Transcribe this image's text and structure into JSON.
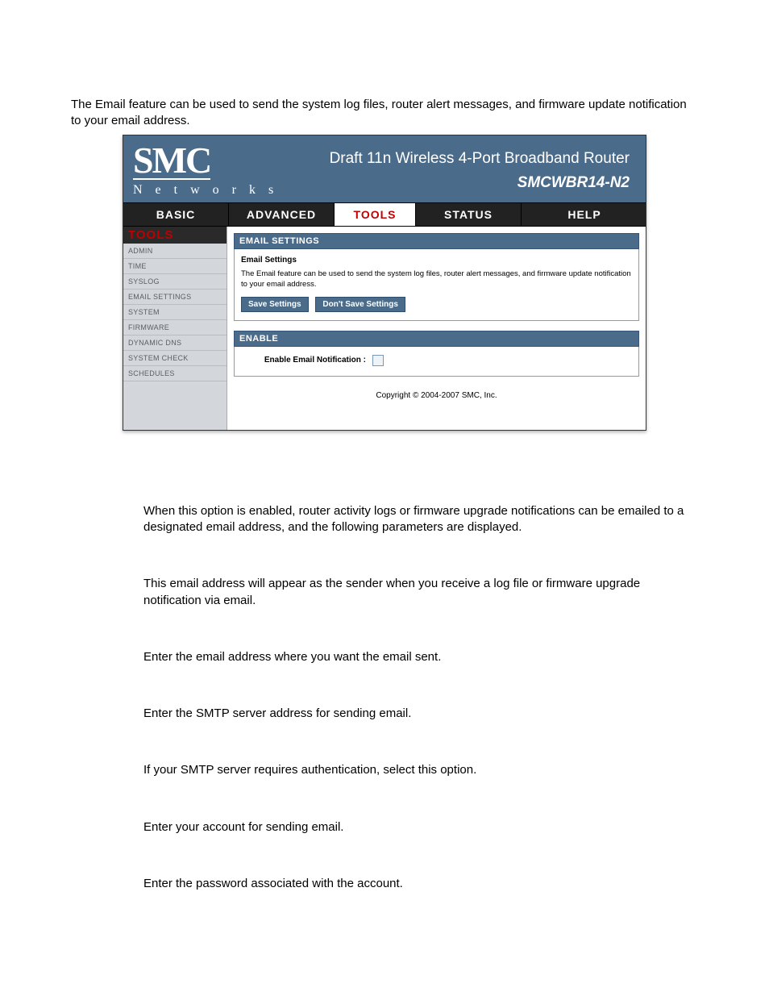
{
  "intro": "The Email feature can be used to send the system log files, router alert messages, and firmware update notification to your email address.",
  "logo": {
    "top": "SMC",
    "bottom": "N e t w o r k s"
  },
  "header": {
    "title": "Draft 11n Wireless 4-Port Broadband Router",
    "model": "SMCWBR14-N2"
  },
  "tabs": {
    "basic": "BASIC",
    "advanced": "ADVANCED",
    "tools": "TOOLS",
    "status": "STATUS",
    "help": "HELP"
  },
  "sidebar": {
    "title": "TOOLS",
    "items": [
      "ADMIN",
      "TIME",
      "SYSLOG",
      "EMAIL SETTINGS",
      "SYSTEM",
      "FIRMWARE",
      "DYNAMIC DNS",
      "SYSTEM CHECK",
      "SCHEDULES"
    ]
  },
  "sections": {
    "email": {
      "header": "EMAIL SETTINGS",
      "subtitle": "Email Settings",
      "desc": "The Email feature can be used to send the system log files, router alert messages, and firmware update notification to your email address.",
      "save": "Save Settings",
      "dont": "Don't Save Settings"
    },
    "enable": {
      "header": "ENABLE",
      "label": "Enable Email Notification :"
    }
  },
  "copyright": "Copyright © 2004-2007 SMC, Inc.",
  "lower": {
    "p1": "When this option is enabled, router activity logs or firmware upgrade notifications can be emailed to a designated email address, and the following parameters are displayed.",
    "p2": "This email address will appear as the sender when you receive a log file or firmware upgrade notification via email.",
    "p3": "Enter the email address where you want the email sent.",
    "p4": "Enter the SMTP server address for sending email.",
    "p5": "If your SMTP server requires authentication, select this option.",
    "p6": "Enter your account for sending email.",
    "p7": "Enter the password associated with the account."
  }
}
